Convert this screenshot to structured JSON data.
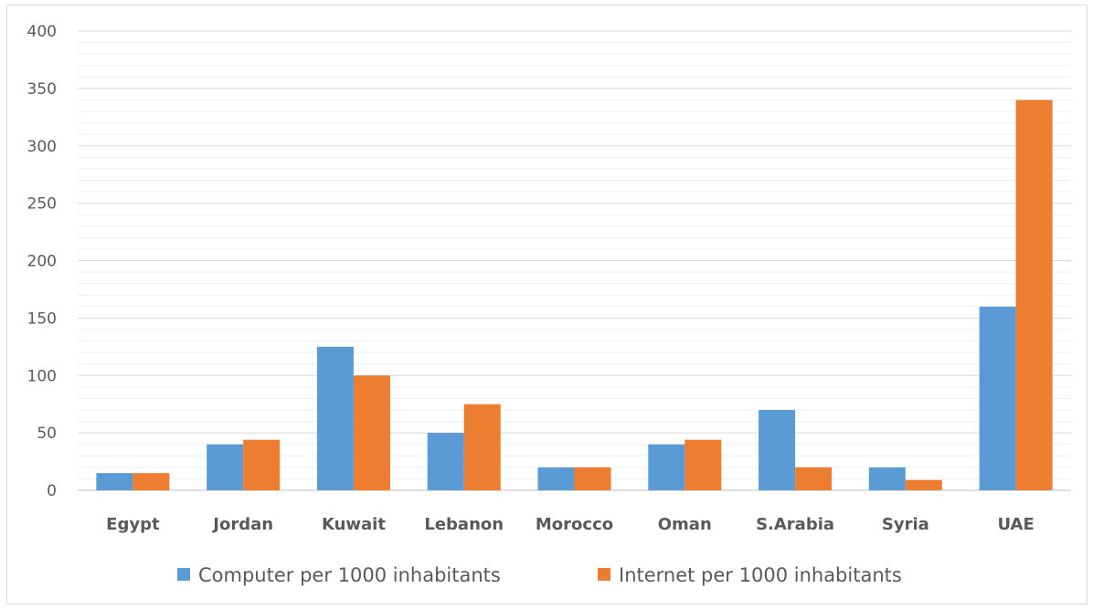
{
  "chart_data": {
    "type": "bar",
    "categories": [
      "Egypt",
      "Jordan",
      "Kuwait",
      "Lebanon",
      "Morocco",
      "Oman",
      "S.Arabia",
      "Syria",
      "UAE"
    ],
    "series": [
      {
        "name": "Computer per 1000 inhabitants",
        "color": "#5b9bd5",
        "values": [
          15,
          40,
          125,
          50,
          20,
          40,
          70,
          20,
          160
        ]
      },
      {
        "name": "Internet per 1000 inhabitants",
        "color": "#ed7d31",
        "values": [
          15,
          44,
          100,
          75,
          20,
          44,
          20,
          9,
          340
        ]
      }
    ],
    "ylim": [
      0,
      400
    ],
    "yticks": [
      "0",
      "50",
      "100",
      "150",
      "200",
      "250",
      "300",
      "350",
      "400"
    ],
    "title": "",
    "xlabel": "",
    "ylabel": "",
    "grid": true,
    "legend_position": "bottom"
  }
}
